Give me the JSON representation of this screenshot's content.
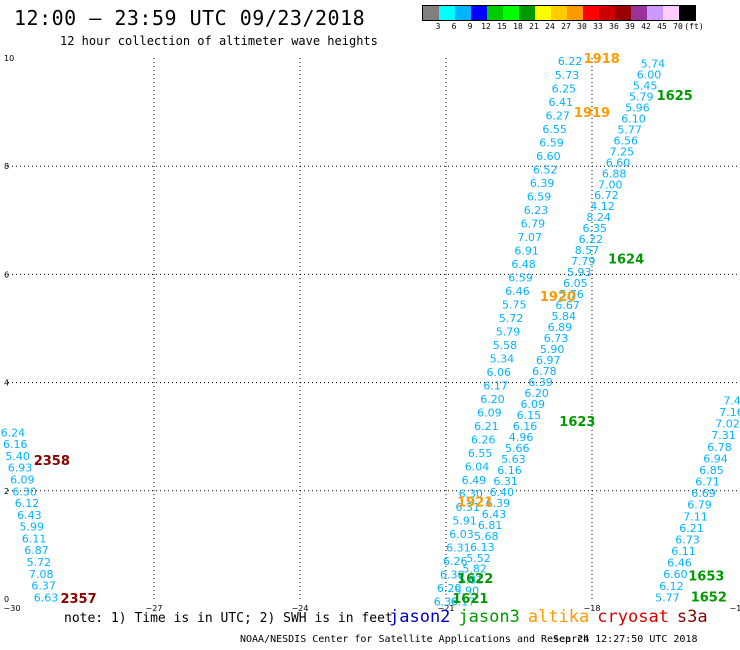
{
  "title": "12:00 – 23:59 UTC 09/23/2018",
  "subtitle": "12 hour collection of altimeter wave heights",
  "note": "note: 1) Time is in UTC; 2) SWH is in feet",
  "credit": "NOAA/NESDIS Center for Satellite Applications and Research",
  "timestamp": "Sep 24 12:27:50 UTC 2018",
  "missions": [
    {
      "name": "jason2",
      "color": "#0000cc"
    },
    {
      "name": "jason3",
      "color": "#009900"
    },
    {
      "name": "altika",
      "color": "#ff9900"
    },
    {
      "name": "cryosat",
      "color": "#dd0000"
    },
    {
      "name": "s3a",
      "color": "#880000"
    }
  ],
  "color_scale": {
    "unit": "(ft)",
    "colors": [
      "#808080",
      "#00ffff",
      "#00b4ff",
      "#0000ff",
      "#00cc00",
      "#00ff00",
      "#009900",
      "#ffff00",
      "#ffcc00",
      "#ff9900",
      "#ff0000",
      "#cc0000",
      "#990000",
      "#993399",
      "#cc99ff",
      "#ffccff",
      "#000000"
    ],
    "labels": [
      "3",
      "6",
      "9",
      "12",
      "15",
      "18",
      "21",
      "24",
      "27",
      "30",
      "33",
      "36",
      "39",
      "42",
      "45",
      "70"
    ]
  },
  "chart_data": {
    "type": "scatter",
    "xlim": [
      -30,
      -15
    ],
    "ylim": [
      0,
      10
    ],
    "x_ticks": [
      -30,
      -27,
      -24,
      -21,
      -18,
      -15
    ],
    "x_tick_labels": [
      "−30",
      "−27",
      "−24",
      "−21",
      "−18",
      "−15"
    ],
    "y_ticks": [
      0,
      2,
      4,
      6,
      8,
      10
    ],
    "y_tick_labels": [
      "0",
      "2",
      "4",
      "6",
      "8",
      "10"
    ],
    "grid": true,
    "value_color": "#00b4ff",
    "tracks": [
      {
        "x0": -29.9,
        "y0": 3.08,
        "x1": -29.22,
        "y1": 0.03,
        "values": [
          "6.24",
          "6.16",
          "5.40",
          "6.93",
          "6.09",
          "6.30",
          "6.12",
          "6.43",
          "5.99",
          "6.11",
          "6.87",
          "5.72",
          "7.08",
          "6.37",
          "6.63"
        ]
      },
      {
        "x0": -18.45,
        "y0": 9.94,
        "x1": -21.0,
        "y1": -0.05,
        "values": [
          "6.22",
          "5.73",
          "6.25",
          "6.41",
          "6.27",
          "6.55",
          "6.59",
          "6.60",
          "6.52",
          "6.39",
          "6.59",
          "6.23",
          "6.79",
          "7.07",
          "6.91",
          "6.48",
          "6.59",
          "6.46",
          "5.75",
          "5.72",
          "5.79",
          "5.58",
          "5.34",
          "6.06",
          "6.17",
          "6.20",
          "6.09",
          "6.21",
          "6.26",
          "6.55",
          "6.04",
          "6.49",
          "6.30",
          "6.31",
          "5.91",
          "6.03",
          "6.31",
          "6.26",
          "6.30",
          "6.20",
          "6.39"
        ]
      },
      {
        "x0": -16.75,
        "y0": 9.9,
        "x1": -20.65,
        "y1": -0.05,
        "values": [
          "5.74",
          "6.00",
          "5.45",
          "5.79",
          "5.96",
          "6.10",
          "5.77",
          "6.56",
          "7.25",
          "6.60",
          "6.88",
          "7.00",
          "6.72",
          "4.12",
          "8.24",
          "6.35",
          "6.22",
          "8.57",
          "7.79",
          "5.93",
          "6.05",
          "5.76",
          "6.67",
          "5.84",
          "6.89",
          "6.73",
          "5.90",
          "6.97",
          "6.78",
          "6.39",
          "6.20",
          "6.09",
          "6.15",
          "6.16",
          "4.96",
          "5.66",
          "5.63",
          "6.16",
          "6.31",
          "6.40",
          "6.39",
          "6.43",
          "6.81",
          "5.68",
          "6.13",
          "5.52",
          "5.82",
          "5.81",
          "5.90",
          "6.17"
        ]
      },
      {
        "x0": -15.05,
        "y0": 3.67,
        "x1": -16.45,
        "y1": 0.03,
        "values": [
          "7.40",
          "7.16",
          "7.02",
          "7.31",
          "6.78",
          "6.94",
          "6.85",
          "6.71",
          "6.69",
          "6.79",
          "7.11",
          "6.21",
          "6.73",
          "6.11",
          "6.46",
          "6.60",
          "6.12",
          "5.77"
        ]
      }
    ],
    "annotations": [
      {
        "text": "2358",
        "x": -29.1,
        "y": 2.55,
        "color": "#880000"
      },
      {
        "text": "2357",
        "x": -28.55,
        "y": 0.0,
        "color": "#880000"
      },
      {
        "text": "1918",
        "x": -17.8,
        "y": 9.98,
        "color": "#ff9900"
      },
      {
        "text": "1919",
        "x": -18.0,
        "y": 8.98,
        "color": "#ff9900"
      },
      {
        "text": "1920",
        "x": -18.7,
        "y": 5.58,
        "color": "#ff9900"
      },
      {
        "text": "1921",
        "x": -20.4,
        "y": 1.78,
        "color": "#ff9900"
      },
      {
        "text": "1625",
        "x": -16.3,
        "y": 9.3,
        "color": "#009900"
      },
      {
        "text": "1624",
        "x": -17.3,
        "y": 6.28,
        "color": "#009900"
      },
      {
        "text": "1623",
        "x": -18.3,
        "y": 3.27,
        "color": "#009900"
      },
      {
        "text": "1622",
        "x": -20.4,
        "y": 0.37,
        "color": "#009900"
      },
      {
        "text": "1621",
        "x": -20.5,
        "y": 0.0,
        "color": "#009900"
      },
      {
        "text": "1653",
        "x": -15.65,
        "y": 0.42,
        "color": "#009900"
      },
      {
        "text": "1652",
        "x": -15.6,
        "y": 0.03,
        "color": "#009900"
      }
    ]
  }
}
